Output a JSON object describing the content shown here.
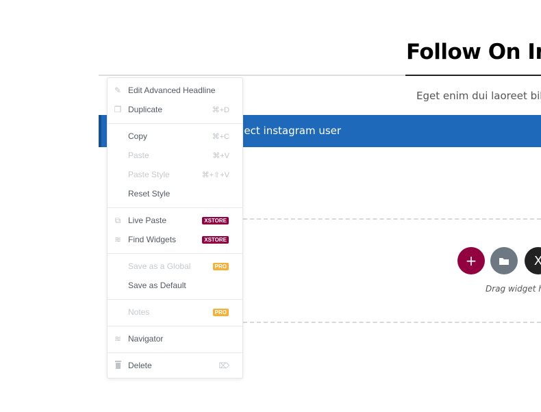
{
  "page": {
    "title": "Follow On In",
    "subtitle": "Eget enim dui laoreet bib",
    "instagram_bar": "elect instagram user",
    "drag_hint": "Drag widget h"
  },
  "colors": {
    "accent_blue": "#1f69bb",
    "add_button": "#93003f",
    "folder_button": "#6d7882",
    "xstore_badge": "#93003f",
    "pro_badge": "#f5b03a"
  },
  "menu": {
    "items": [
      {
        "label": "Edit Advanced Headline",
        "icon": "pencil-icon",
        "shortcut": "",
        "disabled": false
      },
      {
        "label": "Duplicate",
        "icon": "duplicate-icon",
        "shortcut": "⌘+D",
        "disabled": false
      },
      {
        "label": "Copy",
        "icon": "",
        "shortcut": "⌘+C",
        "disabled": false
      },
      {
        "label": "Paste",
        "icon": "",
        "shortcut": "⌘+V",
        "disabled": true
      },
      {
        "label": "Paste Style",
        "icon": "",
        "shortcut": "⌘+⇧+V",
        "disabled": true
      },
      {
        "label": "Reset Style",
        "icon": "",
        "shortcut": "",
        "disabled": false
      },
      {
        "label": "Live Paste",
        "icon": "copy-icon",
        "badge": "XSTORE",
        "disabled": false
      },
      {
        "label": "Find Widgets",
        "icon": "layers-icon",
        "badge": "XSTORE",
        "disabled": false
      },
      {
        "label": "Save as a Global",
        "icon": "",
        "badge": "PRO",
        "disabled": true
      },
      {
        "label": "Save as Default",
        "icon": "",
        "disabled": false
      },
      {
        "label": "Notes",
        "icon": "",
        "badge": "PRO",
        "disabled": true
      },
      {
        "label": "Navigator",
        "icon": "layers-icon",
        "disabled": false
      },
      {
        "label": "Delete",
        "icon": "trash-icon",
        "shortcut_icon": "delete-key-icon",
        "disabled": false
      }
    ]
  }
}
